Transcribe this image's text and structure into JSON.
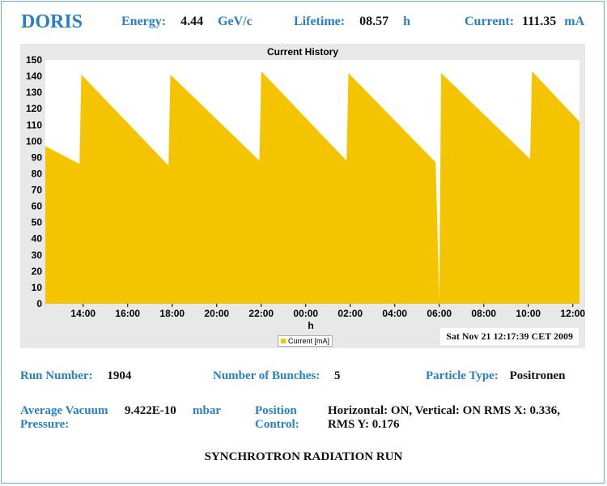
{
  "header": {
    "title": "DORIS",
    "energy": {
      "label": "Energy:",
      "value": "4.44",
      "unit": "GeV/c"
    },
    "lifetime": {
      "label": "Lifetime:",
      "value": "08.57",
      "unit": "h"
    },
    "current": {
      "label": "Current:",
      "value": "111.35",
      "unit": "mA"
    }
  },
  "chart": {
    "title": "Current History",
    "timestamp": "Sat Nov 21 12:17:39 CET 2009",
    "legend": "Current [mA]",
    "fill_color": "#f5c400",
    "background_color": "#e8e8e8"
  },
  "chart_data": {
    "type": "area",
    "title": "Current History",
    "xlabel": "h",
    "ylabel": "",
    "ylim": [
      0,
      150
    ],
    "xlim": [
      "12:18",
      "12:18"
    ],
    "yticks": [
      0,
      10,
      20,
      30,
      40,
      50,
      60,
      70,
      80,
      90,
      100,
      110,
      120,
      130,
      140,
      150
    ],
    "xticks": [
      "14:00",
      "16:00",
      "18:00",
      "20:00",
      "22:00",
      "00:00",
      "02:00",
      "04:00",
      "06:00",
      "08:00",
      "10:00",
      "12:00"
    ],
    "legend": "bottom-center",
    "series": [
      {
        "name": "Current [mA]",
        "points": [
          {
            "t": "12:18",
            "v": 97
          },
          {
            "t": "13:50",
            "v": 86
          },
          {
            "t": "13:55",
            "v": 141
          },
          {
            "t": "17:50",
            "v": 85
          },
          {
            "t": "17:55",
            "v": 141
          },
          {
            "t": "21:55",
            "v": 88
          },
          {
            "t": "22:00",
            "v": 143
          },
          {
            "t": "01:50",
            "v": 88
          },
          {
            "t": "01:55",
            "v": 142
          },
          {
            "t": "05:50",
            "v": 87
          },
          {
            "t": "06:00",
            "v": 2
          },
          {
            "t": "06:05",
            "v": 142
          },
          {
            "t": "10:05",
            "v": 89
          },
          {
            "t": "10:10",
            "v": 143
          },
          {
            "t": "12:18",
            "v": 112
          }
        ]
      }
    ]
  },
  "info": {
    "run_number": {
      "label": "Run Number:",
      "value": "1904"
    },
    "bunches": {
      "label": "Number of Bunches:",
      "value": "5"
    },
    "particle": {
      "label": "Particle Type:",
      "value": "Positronen"
    },
    "vacuum": {
      "label_line1": "Average Vacuum",
      "label_line2": "Pressure:",
      "value": "9.422E-10",
      "unit": "mbar"
    },
    "position": {
      "label_line1": "Position",
      "label_line2": "Control:",
      "value_line1": "Horizontal: ON, Vertical: ON RMS X: 0.336,",
      "value_line2": "RMS Y: 0.176"
    }
  },
  "footer": "SYNCHROTRON RADIATION RUN"
}
